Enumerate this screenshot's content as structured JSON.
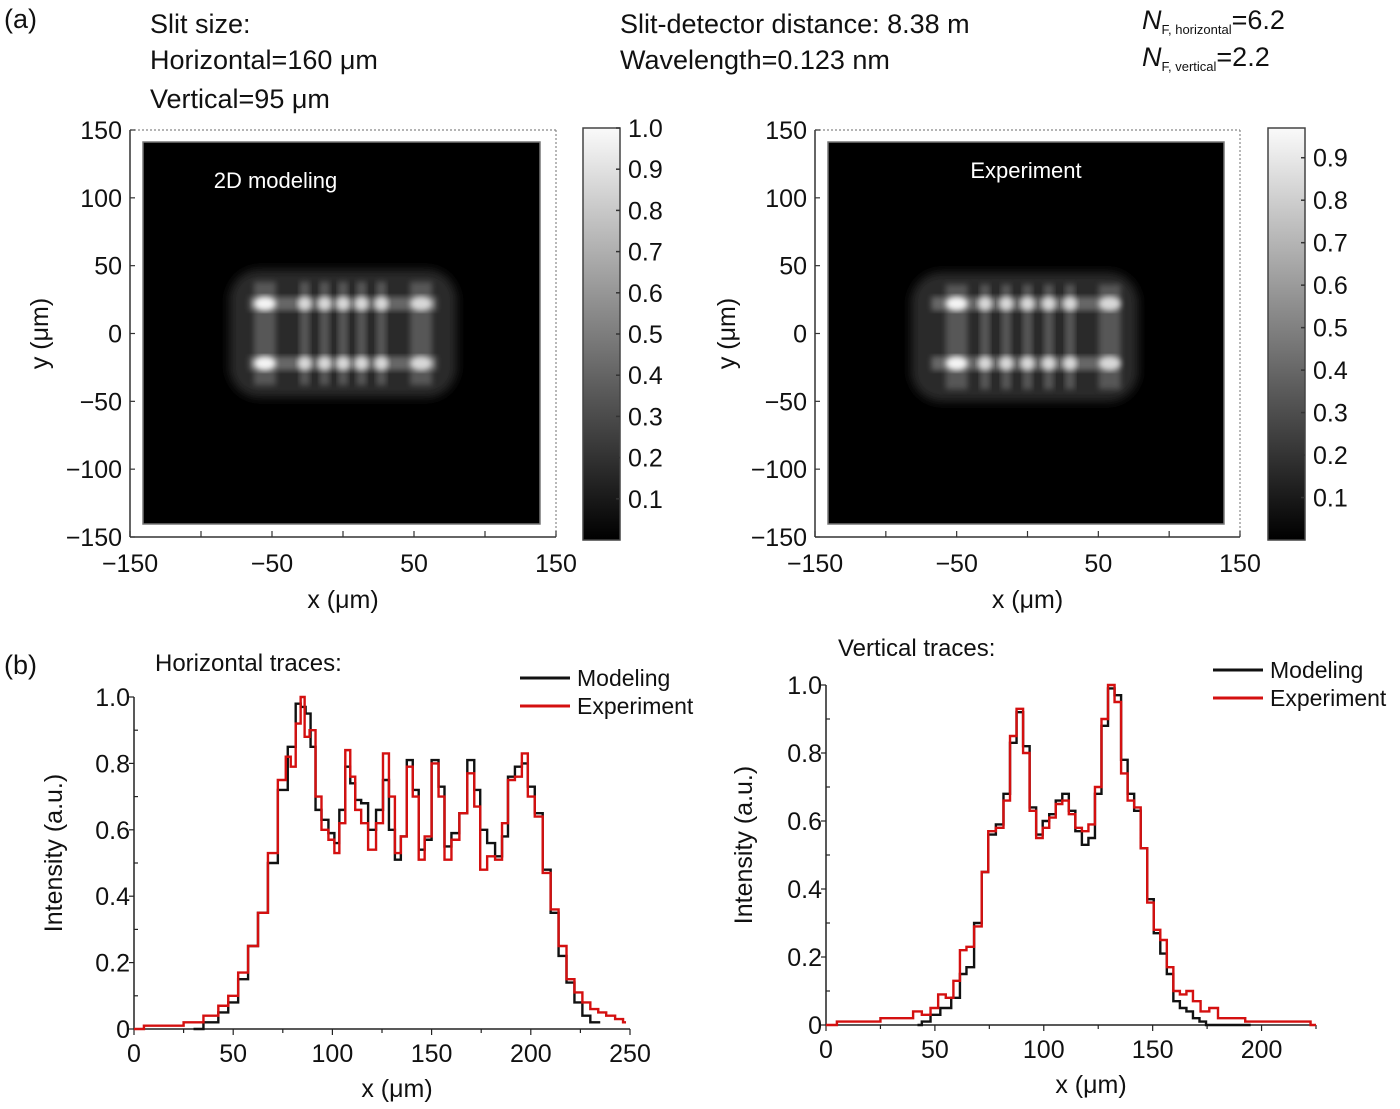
{
  "panel_labels": {
    "a": "(a)",
    "b": "(b)"
  },
  "header": {
    "slit_size_title": "Slit size:",
    "slit_horizontal": "Horizontal=160 μm",
    "slit_vertical": "Vertical=95 μm",
    "distance": "Slit-detector distance: 8.38 m",
    "wavelength": "Wavelength=0.123 nm",
    "nf_horizontal": {
      "symbol": "N",
      "subscript": "F, horizontal",
      "value": "=6.2"
    },
    "nf_vertical": {
      "symbol": "N",
      "subscript": "F, vertical",
      "value": "=2.2"
    }
  },
  "colors": {
    "modeling": "#111111",
    "experiment": "#d41010",
    "axis": "#222222"
  },
  "chart_data": [
    {
      "id": "heatmap-modeling",
      "type": "heatmap",
      "title": "2D modeling",
      "xlabel": "x (μm)",
      "ylabel": "y (μm)",
      "xlim": [
        -150,
        150
      ],
      "ylim": [
        -150,
        150
      ],
      "xticks": [
        -150,
        -50,
        50,
        150
      ],
      "xticks_minor": [
        -100,
        0,
        100
      ],
      "yticks": [
        150,
        100,
        50,
        0,
        -50,
        -100,
        -150
      ],
      "colorbar": {
        "range": [
          0,
          1.0
        ],
        "ticks": [
          "1.0",
          "0.9",
          "0.8",
          "0.7",
          "0.6",
          "0.5",
          "0.4",
          "0.3",
          "0.2",
          "0.1"
        ],
        "colormap": "gray"
      },
      "pattern": {
        "x_extent": [
          -80,
          80
        ],
        "y_extent": [
          -47,
          47
        ],
        "bright_rows_y": [
          22,
          -22
        ],
        "fringe_columns_x": [
          -55,
          -27,
          -13,
          0,
          13,
          27,
          55
        ]
      }
    },
    {
      "id": "heatmap-experiment",
      "type": "heatmap",
      "title": "Experiment",
      "xlabel": "x (μm)",
      "ylabel": "y (μm)",
      "xlim": [
        -150,
        150
      ],
      "ylim": [
        -150,
        150
      ],
      "xticks": [
        -150,
        -50,
        50,
        150
      ],
      "xticks_minor": [
        -100,
        0,
        100
      ],
      "yticks": [
        150,
        100,
        50,
        0,
        -50,
        -100,
        -150
      ],
      "colorbar": {
        "range": [
          0,
          0.97
        ],
        "ticks": [
          "0.9",
          "0.8",
          "0.7",
          "0.6",
          "0.5",
          "0.4",
          "0.3",
          "0.2",
          "0.1"
        ],
        "colormap": "gray"
      },
      "pattern": {
        "x_extent": [
          -82,
          78
        ],
        "y_extent": [
          -50,
          45
        ],
        "bright_rows_y": [
          22,
          -22
        ],
        "fringe_columns_x": [
          -50,
          -30,
          -15,
          0,
          15,
          30,
          58
        ]
      }
    },
    {
      "id": "horizontal-traces",
      "type": "line",
      "title": "Horizontal traces:",
      "xlabel": "x (μm)",
      "ylabel": "Intensity (a.u.)",
      "xlim": [
        0,
        250
      ],
      "ylim": [
        0,
        1.0
      ],
      "xticks": [
        "0",
        "50",
        "100",
        "150",
        "200",
        "250"
      ],
      "yticks": [
        "0",
        "0.2",
        "0.4",
        "0.6",
        "0.8",
        "1.0"
      ],
      "legend": {
        "position": "top-right",
        "entries": [
          "Modeling",
          "Experiment"
        ]
      },
      "series": [
        {
          "name": "Modeling",
          "x": [
            30,
            40,
            45,
            50,
            55,
            60,
            65,
            70,
            75,
            80,
            83,
            85,
            88,
            90,
            93,
            96,
            100,
            102,
            105,
            108,
            110,
            113,
            116,
            120,
            124,
            127,
            130,
            133,
            136,
            139,
            142,
            145,
            148,
            152,
            155,
            158,
            162,
            166,
            170,
            173,
            176,
            180,
            184,
            187,
            190,
            194,
            197,
            200,
            204,
            208,
            212,
            216,
            220,
            224,
            228,
            232,
            235
          ],
          "y": [
            0.0,
            0.02,
            0.05,
            0.08,
            0.15,
            0.25,
            0.35,
            0.5,
            0.72,
            0.85,
            0.98,
            0.97,
            0.95,
            0.85,
            0.66,
            0.63,
            0.59,
            0.56,
            0.66,
            0.79,
            0.74,
            0.69,
            0.68,
            0.6,
            0.66,
            0.75,
            0.6,
            0.51,
            0.58,
            0.81,
            0.72,
            0.54,
            0.57,
            0.81,
            0.73,
            0.55,
            0.59,
            0.65,
            0.81,
            0.72,
            0.6,
            0.56,
            0.52,
            0.58,
            0.76,
            0.79,
            0.8,
            0.73,
            0.65,
            0.48,
            0.35,
            0.22,
            0.14,
            0.08,
            0.04,
            0.02,
            0.02
          ]
        },
        {
          "name": "Experiment",
          "x": [
            0,
            10,
            20,
            30,
            40,
            45,
            50,
            55,
            60,
            65,
            70,
            75,
            78,
            80,
            83,
            85,
            87,
            90,
            93,
            96,
            100,
            102,
            105,
            108,
            110,
            113,
            116,
            120,
            124,
            127,
            130,
            133,
            136,
            139,
            142,
            145,
            148,
            152,
            155,
            158,
            162,
            166,
            170,
            173,
            176,
            180,
            184,
            187,
            190,
            194,
            197,
            200,
            204,
            208,
            212,
            216,
            220,
            224,
            228,
            232,
            236,
            240,
            245,
            248
          ],
          "y": [
            0.0,
            0.01,
            0.01,
            0.02,
            0.04,
            0.07,
            0.1,
            0.17,
            0.25,
            0.35,
            0.53,
            0.75,
            0.82,
            0.79,
            0.92,
            1.0,
            0.88,
            0.9,
            0.7,
            0.6,
            0.57,
            0.53,
            0.62,
            0.84,
            0.76,
            0.66,
            0.62,
            0.54,
            0.62,
            0.83,
            0.7,
            0.53,
            0.58,
            0.79,
            0.7,
            0.51,
            0.58,
            0.8,
            0.7,
            0.51,
            0.57,
            0.65,
            0.77,
            0.67,
            0.48,
            0.52,
            0.51,
            0.62,
            0.75,
            0.76,
            0.83,
            0.7,
            0.64,
            0.47,
            0.36,
            0.25,
            0.15,
            0.11,
            0.08,
            0.06,
            0.05,
            0.04,
            0.03,
            0.02
          ]
        }
      ]
    },
    {
      "id": "vertical-traces",
      "type": "line",
      "title": "Vertical traces:",
      "xlabel": "x (μm)",
      "ylabel": "Intensity (a.u.)",
      "xlim": [
        0,
        225
      ],
      "ylim": [
        0,
        1.0
      ],
      "xticks": [
        "0",
        "50",
        "100",
        "150",
        "200"
      ],
      "yticks": [
        "0",
        "0.2",
        "0.4",
        "0.6",
        "0.8",
        "1.0"
      ],
      "legend": {
        "position": "top-right",
        "entries": [
          "Modeling",
          "Experiment"
        ]
      },
      "series": [
        {
          "name": "Modeling",
          "x": [
            42,
            46,
            50,
            55,
            60,
            63,
            66,
            70,
            73,
            76,
            80,
            83,
            86,
            89,
            92,
            95,
            98,
            101,
            104,
            107,
            110,
            113,
            116,
            119,
            122,
            125,
            128,
            131,
            134,
            137,
            140,
            143,
            146,
            149,
            152,
            155,
            158,
            161,
            164,
            167,
            170,
            173,
            176,
            180,
            190,
            195
          ],
          "y": [
            0.0,
            0.01,
            0.03,
            0.05,
            0.08,
            0.15,
            0.17,
            0.3,
            0.45,
            0.56,
            0.59,
            0.68,
            0.83,
            0.92,
            0.82,
            0.64,
            0.56,
            0.6,
            0.62,
            0.66,
            0.68,
            0.63,
            0.57,
            0.53,
            0.55,
            0.68,
            0.88,
            0.99,
            0.97,
            0.78,
            0.68,
            0.63,
            0.52,
            0.37,
            0.27,
            0.21,
            0.15,
            0.07,
            0.05,
            0.04,
            0.02,
            0.01,
            0.0,
            0.0,
            0.0,
            0.0
          ]
        },
        {
          "name": "Experiment",
          "x": [
            0,
            10,
            20,
            30,
            38,
            42,
            46,
            50,
            53,
            57,
            60,
            63,
            66,
            70,
            73,
            76,
            80,
            83,
            86,
            89,
            92,
            95,
            98,
            101,
            104,
            107,
            110,
            113,
            116,
            119,
            122,
            125,
            128,
            131,
            134,
            137,
            140,
            143,
            146,
            149,
            152,
            155,
            158,
            161,
            164,
            167,
            170,
            174,
            178,
            182,
            186,
            190,
            195,
            200,
            210,
            220,
            225
          ],
          "y": [
            0.0,
            0.01,
            0.01,
            0.02,
            0.02,
            0.04,
            0.03,
            0.05,
            0.09,
            0.08,
            0.13,
            0.22,
            0.23,
            0.29,
            0.45,
            0.57,
            0.58,
            0.66,
            0.85,
            0.93,
            0.8,
            0.63,
            0.55,
            0.58,
            0.61,
            0.65,
            0.66,
            0.62,
            0.58,
            0.57,
            0.59,
            0.7,
            0.9,
            1.0,
            0.95,
            0.74,
            0.66,
            0.64,
            0.52,
            0.36,
            0.28,
            0.25,
            0.17,
            0.1,
            0.09,
            0.1,
            0.07,
            0.04,
            0.05,
            0.02,
            0.02,
            0.02,
            0.01,
            0.01,
            0.01,
            0.01,
            0.0
          ]
        }
      ]
    }
  ]
}
